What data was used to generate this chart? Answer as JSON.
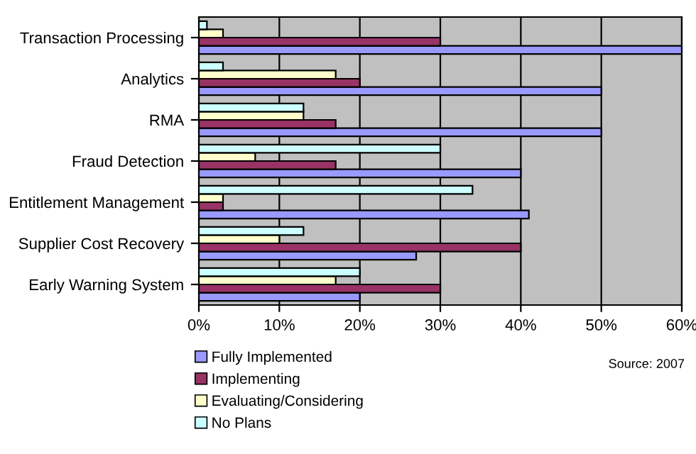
{
  "chart_data": {
    "type": "bar",
    "orientation": "horizontal",
    "categories": [
      "Transaction Processing",
      "Analytics",
      "RMA",
      "Fraud Detection",
      "Entitlement Management",
      "Supplier Cost Recovery",
      "Early Warning System"
    ],
    "series": [
      {
        "name": "Fully Implemented",
        "color": "#9999ff",
        "values": [
          60,
          50,
          50,
          40,
          41,
          27,
          20
        ]
      },
      {
        "name": "Implementing",
        "color": "#993366",
        "values": [
          30,
          20,
          17,
          17,
          3,
          40,
          30
        ]
      },
      {
        "name": "Evaluating/Considering",
        "color": "#ffffcc",
        "values": [
          3,
          17,
          13,
          7,
          3,
          10,
          17
        ]
      },
      {
        "name": "No Plans",
        "color": "#ccffff",
        "values": [
          1,
          3,
          13,
          30,
          34,
          13,
          20
        ]
      }
    ],
    "xlim": [
      0,
      60
    ],
    "xticks": [
      {
        "value": 0,
        "label": "0%"
      },
      {
        "value": 10,
        "label": "10%"
      },
      {
        "value": 20,
        "label": "20%"
      },
      {
        "value": 30,
        "label": "30%"
      },
      {
        "value": 40,
        "label": "40%"
      },
      {
        "value": 50,
        "label": "50%"
      },
      {
        "value": 60,
        "label": "60%"
      }
    ],
    "grid": "x",
    "legend": "bottom",
    "annotations": [
      "Source: 2007"
    ]
  }
}
